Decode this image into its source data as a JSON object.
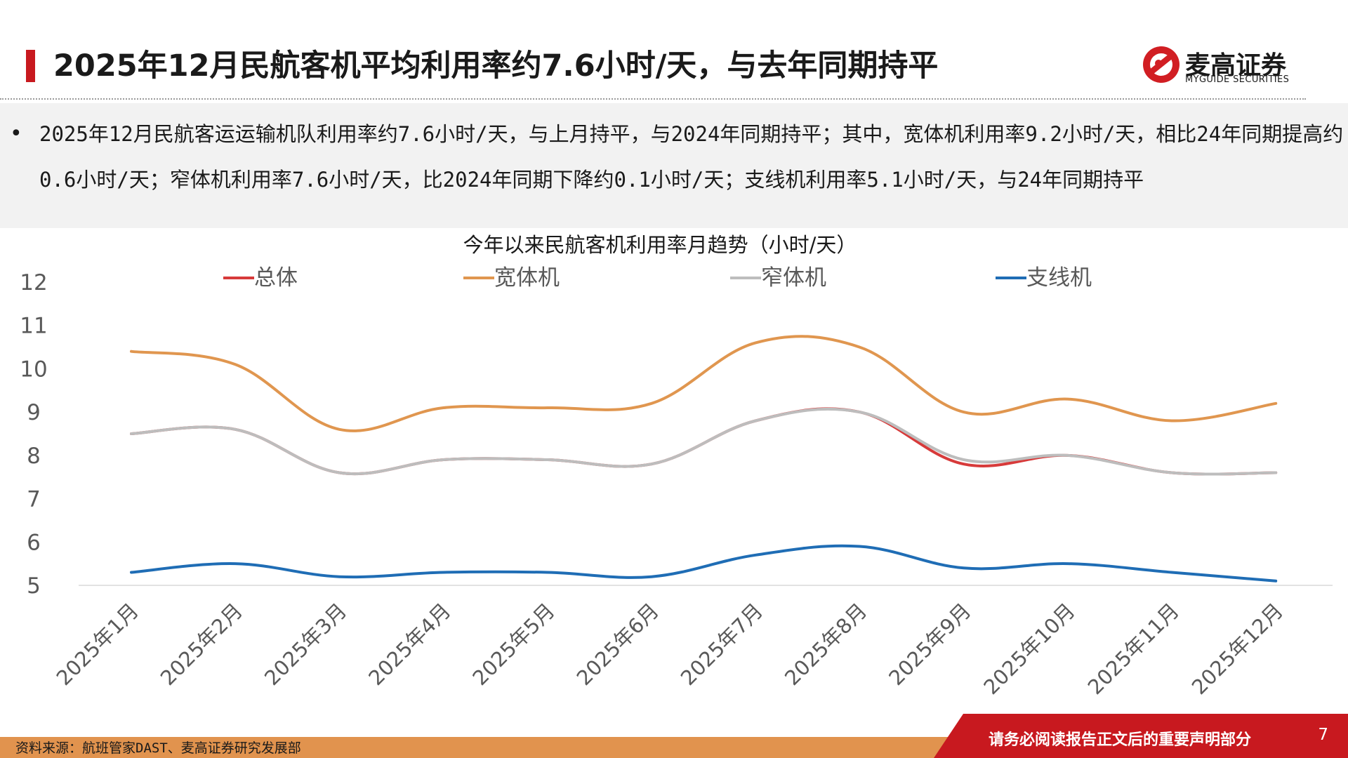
{
  "header": {
    "title": "2025年12月民航客机平均利用率约7.6小时/天，与去年同期持平",
    "logo_name": "麦高证券",
    "logo_sub": "MYGUIDE SECURITIES"
  },
  "summary": {
    "bullet": "•",
    "text": "2025年12月民航客运运输机队利用率约7.6小时/天，与上月持平，与2024年同期持平；其中，宽体机利用率9.2小时/天，相比24年同期提高约0.6小时/天；窄体机利用率7.6小时/天，比2024年同期下降约0.1小时/天；支线机利用率5.1小时/天，与24年同期持平"
  },
  "chart_data": {
    "type": "line",
    "title": "今年以来民航客机利用率月趋势（小时/天）",
    "categories": [
      "2025年1月",
      "2025年2月",
      "2025年3月",
      "2025年4月",
      "2025年5月",
      "2025年6月",
      "2025年7月",
      "2025年8月",
      "2025年9月",
      "2025年10月",
      "2025年11月",
      "2025年12月"
    ],
    "ylim": [
      5,
      12
    ],
    "yticks": [
      5,
      6,
      7,
      8,
      9,
      10,
      11,
      12
    ],
    "legend_position": "top",
    "series": [
      {
        "name": "总体",
        "color": "#d73a3a",
        "values": [
          8.5,
          8.6,
          7.6,
          7.9,
          7.9,
          7.8,
          8.8,
          9.0,
          7.8,
          8.0,
          7.6,
          7.6
        ]
      },
      {
        "name": "宽体机",
        "color": "#e0964f",
        "values": [
          10.4,
          10.1,
          8.6,
          9.1,
          9.1,
          9.2,
          10.6,
          10.5,
          9.0,
          9.3,
          8.8,
          9.2
        ]
      },
      {
        "name": "窄体机",
        "color": "#bdbdbd",
        "values": [
          8.5,
          8.6,
          7.6,
          7.9,
          7.9,
          7.8,
          8.8,
          9.0,
          7.9,
          8.0,
          7.6,
          7.6
        ]
      },
      {
        "name": "支线机",
        "color": "#1f6db5",
        "values": [
          5.3,
          5.5,
          5.2,
          5.3,
          5.3,
          5.2,
          5.7,
          5.9,
          5.4,
          5.5,
          5.3,
          5.1
        ]
      }
    ]
  },
  "footer": {
    "source": "资料来源：航班管家DAST、麦高证券研究发展部",
    "notice": "请务必阅读报告正文后的重要声明部分",
    "page": "7"
  }
}
